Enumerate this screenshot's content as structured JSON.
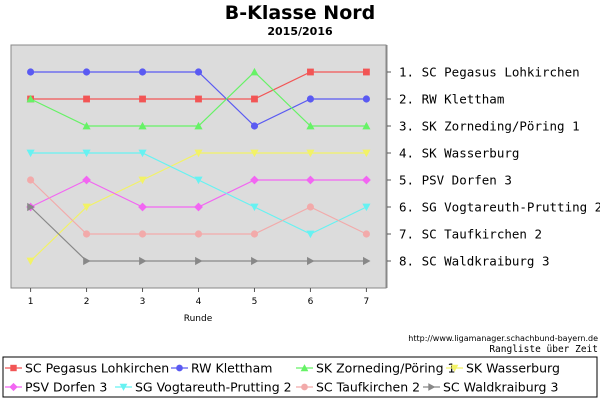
{
  "header": {
    "title": "B-Klasse Nord",
    "subtitle": "2015/2016"
  },
  "footer": {
    "url": "http://www.ligamanager.schachbund-bayern.de",
    "caption": "Rangliste über Zeit"
  },
  "chart_data": {
    "type": "line",
    "title": "B-Klasse Nord",
    "subtitle": "2015/2016",
    "xlabel": "Runde",
    "ylabel": "",
    "x": [
      1,
      2,
      3,
      4,
      5,
      6,
      7
    ],
    "xlim": [
      0.65,
      7.35
    ],
    "ylim": [
      9,
      0
    ],
    "grid": false,
    "legend_position": "bottom",
    "rank_labels": [
      "1. SC Pegasus Lohkirchen",
      "2. RW Klettham",
      "3. SK Zorneding/Pöring 1",
      "4. SK Wasserburg",
      "5. PSV Dorfen 3",
      "6. SG Vogtareuth-Prutting 2",
      "7. SC Taufkirchen 2",
      "8. SC Waldkraiburg 3"
    ],
    "series": [
      {
        "name": "SC Pegasus Lohkirchen",
        "color": "#f25555",
        "marker": "square",
        "values": [
          2,
          2,
          2,
          2,
          2,
          1,
          1
        ]
      },
      {
        "name": "RW Klettham",
        "color": "#5a5af2",
        "marker": "circle",
        "values": [
          1,
          1,
          1,
          1,
          3,
          2,
          2
        ]
      },
      {
        "name": "SK Zorneding/Pöring 1",
        "color": "#66f266",
        "marker": "triangle-up",
        "values": [
          2,
          3,
          3,
          3,
          1,
          3,
          3
        ]
      },
      {
        "name": "SK Wasserburg",
        "color": "#f2f266",
        "marker": "triangle-down",
        "values": [
          8,
          6,
          5,
          4,
          4,
          4,
          4
        ]
      },
      {
        "name": "PSV Dorfen 3",
        "color": "#f266f2",
        "marker": "diamond",
        "values": [
          6,
          5,
          6,
          6,
          5,
          5,
          5
        ]
      },
      {
        "name": "SG Vogtareuth-Prutting 2",
        "color": "#66f2f2",
        "marker": "triangle-down",
        "values": [
          4,
          4,
          4,
          5,
          6,
          7,
          6
        ]
      },
      {
        "name": "SC Taufkirchen 2",
        "color": "#f2aaaa",
        "marker": "circle",
        "values": [
          5,
          7,
          7,
          7,
          7,
          6,
          7
        ]
      },
      {
        "name": "SC Waldkraiburg 3",
        "color": "#888888",
        "marker": "triangle-right",
        "values": [
          6,
          8,
          8,
          8,
          8,
          8,
          8
        ]
      }
    ]
  }
}
